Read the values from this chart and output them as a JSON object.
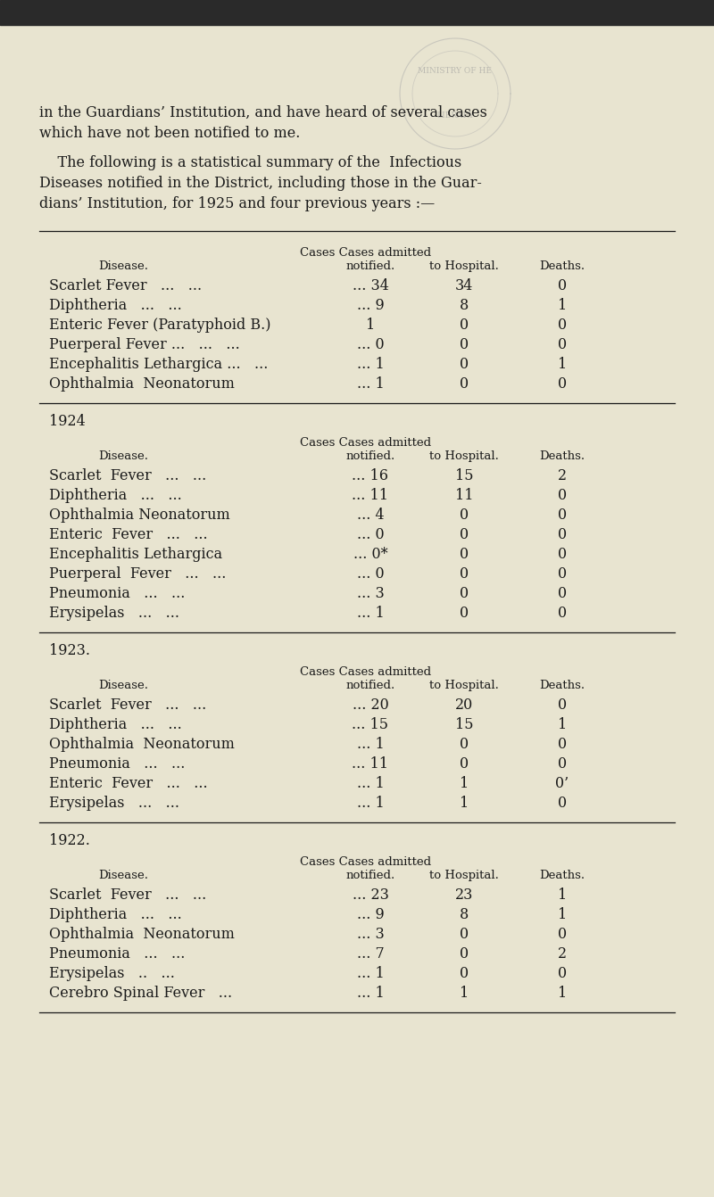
{
  "bg_color": "#e8e4d0",
  "dark_top_color": "#2a2a2a",
  "text_color": "#1a1a1a",
  "intro_lines": [
    "in the Guardians’ Institution, and have heard of several cases",
    "which have not been notified to me."
  ],
  "para_lines": [
    "    The following is a statistical summary of the  Infectious",
    "Diseases notified in the District, including those in the Guar-",
    "dians’ Institution, for 1925 and four previous years :—"
  ],
  "sections": [
    {
      "year": "",
      "rows": [
        [
          "Scarlet Fever   ...   ...",
          "... 34",
          "34",
          "0"
        ],
        [
          "Diphtheria   ...   ...",
          "... 9",
          "8",
          "1"
        ],
        [
          "Enteric Fever (Paratyphoid B.)",
          "1",
          "0",
          "0"
        ],
        [
          "Puerperal Fever ...   ...   ...",
          "... 0",
          "0",
          "0"
        ],
        [
          "Encephalitis Lethargica ...   ...",
          "... 1",
          "0",
          "1"
        ],
        [
          "Ophthalmia  Neonatorum",
          "... 1",
          "0",
          "0"
        ]
      ]
    },
    {
      "year": "1924",
      "rows": [
        [
          "Scarlet  Fever   ...   ...",
          "... 16",
          "15",
          "2"
        ],
        [
          "Diphtheria   ...   ...",
          "... 11",
          "11",
          "0"
        ],
        [
          "Ophthalmia Neonatorum",
          "... 4",
          "0",
          "0"
        ],
        [
          "Enteric  Fever   ...   ...",
          "... 0",
          "0",
          "0"
        ],
        [
          "Encephalitis Lethargica",
          "... 0*",
          "0",
          "0"
        ],
        [
          "Puerperal  Fever   ...   ...",
          "... 0",
          "0",
          "0"
        ],
        [
          "Pneumonia   ...   ...",
          "... 3",
          "0",
          "0"
        ],
        [
          "Erysipelas   ...   ...",
          "... 1",
          "0",
          "0"
        ]
      ]
    },
    {
      "year": "1923.",
      "rows": [
        [
          "Scarlet  Fever   ...   ...",
          "... 20",
          "20",
          "0"
        ],
        [
          "Diphtheria   ...   ...",
          "... 15",
          "15",
          "1"
        ],
        [
          "Ophthalmia  Neonatorum",
          "... 1",
          "0",
          "0"
        ],
        [
          "Pneumonia   ...   ...",
          "... 11",
          "0",
          "0"
        ],
        [
          "Enteric  Fever   ...   ...",
          "... 1",
          "1",
          "0’"
        ],
        [
          "Erysipelas   ...   ...",
          "... 1",
          "1",
          "0"
        ]
      ]
    },
    {
      "year": "1922.",
      "rows": [
        [
          "Scarlet  Fever   ...   ...",
          "... 23",
          "23",
          "1"
        ],
        [
          "Diphtheria   ...   ...",
          "... 9",
          "8",
          "1"
        ],
        [
          "Ophthalmia  Neonatorum",
          "... 3",
          "0",
          "0"
        ],
        [
          "Pneumonia   ...   ...",
          "... 7",
          "0",
          "2"
        ],
        [
          "Erysipelas   ..   ...",
          "... 1",
          "0",
          "0"
        ],
        [
          "Cerebro Spinal Fever   ...",
          "... 1",
          "1",
          "1"
        ]
      ]
    }
  ]
}
